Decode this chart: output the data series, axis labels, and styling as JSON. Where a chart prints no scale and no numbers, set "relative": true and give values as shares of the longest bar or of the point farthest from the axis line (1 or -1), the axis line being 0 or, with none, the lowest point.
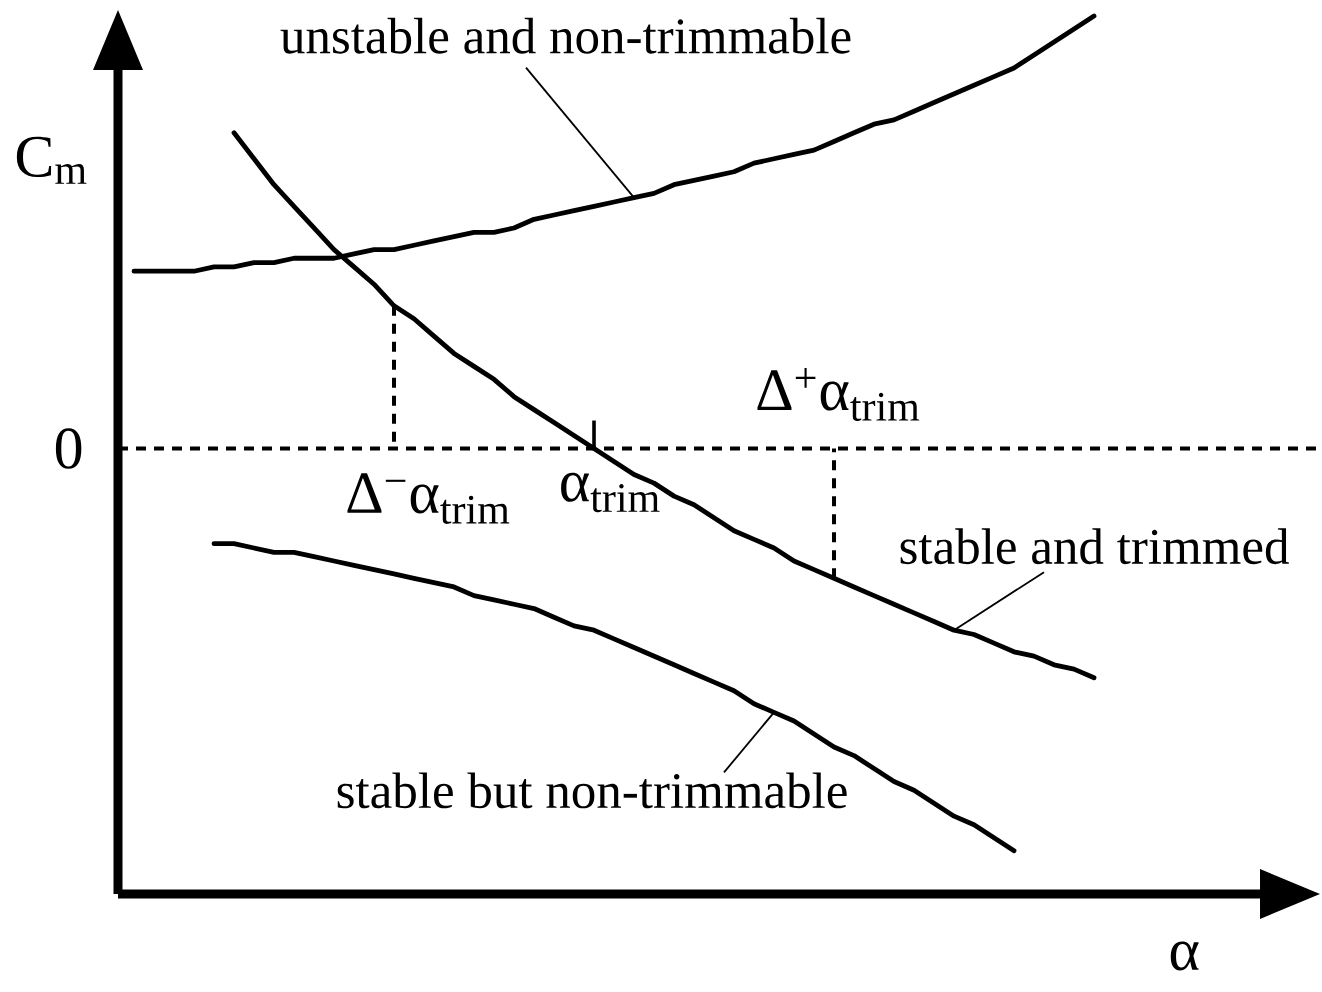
{
  "chart_data": {
    "type": "line",
    "relative": true,
    "xlabel": "α",
    "ylabel": "C$_{m}$",
    "categories": [
      null,
      null,
      null,
      null,
      null,
      null,
      null,
      null,
      null,
      null,
      null,
      null,
      null,
      null,
      null,
      null,
      null,
      null,
      null,
      null,
      null,
      null,
      null,
      null,
      null,
      null,
      null,
      null,
      null,
      null,
      null,
      null,
      null,
      null,
      null,
      null,
      null,
      null,
      null,
      null,
      null,
      null,
      null,
      null,
      null,
      null,
      null,
      null,
      null
    ],
    "series": [
      {
        "name": "unstable and non-trimmable",
        "color": "#000000",
        "values": [
          0.41,
          0.41,
          0.41,
          0.41,
          0.42,
          0.42,
          0.43,
          0.43,
          0.44,
          0.44,
          0.44,
          0.45,
          0.46,
          0.46,
          0.47,
          0.48,
          0.49,
          0.5,
          0.5,
          0.51,
          0.53,
          0.54,
          0.55,
          0.56,
          0.57,
          0.58,
          0.59,
          0.61,
          0.62,
          0.63,
          0.64,
          0.66,
          0.67,
          0.68,
          0.69,
          0.71,
          0.73,
          0.75,
          0.76,
          0.78,
          0.8,
          0.82,
          0.84,
          0.86,
          0.88,
          0.91,
          0.94,
          0.97,
          1.0
        ]
      },
      {
        "name": "stable and trimmed",
        "color": "#000000",
        "values": [
          null,
          null,
          null,
          null,
          null,
          0.73,
          0.67,
          0.61,
          0.56,
          0.51,
          0.46,
          0.42,
          0.38,
          0.33,
          0.3,
          0.26,
          0.22,
          0.19,
          0.16,
          0.12,
          0.09,
          0.06,
          0.03,
          0,
          -0.03,
          -0.06,
          -0.08,
          -0.11,
          -0.13,
          -0.16,
          -0.19,
          -0.21,
          -0.23,
          -0.26,
          -0.28,
          -0.3,
          -0.32,
          -0.34,
          -0.36,
          -0.38,
          -0.4,
          -0.42,
          -0.43,
          -0.45,
          -0.47,
          -0.48,
          -0.5,
          -0.51,
          -0.53
        ]
      },
      {
        "name": "stable but non-trimmable",
        "color": "#000000",
        "values": [
          null,
          null,
          null,
          null,
          -0.22,
          -0.22,
          -0.23,
          -0.24,
          -0.24,
          -0.25,
          -0.26,
          -0.27,
          -0.28,
          -0.29,
          -0.3,
          -0.31,
          -0.32,
          -0.34,
          -0.35,
          -0.36,
          -0.37,
          -0.39,
          -0.41,
          -0.42,
          -0.44,
          -0.46,
          -0.48,
          -0.5,
          -0.52,
          -0.54,
          -0.56,
          -0.59,
          -0.61,
          -0.63,
          -0.66,
          -0.69,
          -0.71,
          -0.74,
          -0.77,
          -0.79,
          -0.82,
          -0.85,
          -0.87,
          -0.9,
          -0.93,
          null,
          null,
          null,
          null
        ]
      }
    ],
    "annotations": [
      "Δ$^{−}$α$_{trim}$",
      "α$_{trim}$",
      "Δ$^{+}$α$_{trim}$"
    ],
    "ref_lines": [
      {
        "axis": "y",
        "value": 0,
        "label": "0",
        "color": "#000000",
        "line_style": "dashed"
      }
    ]
  }
}
